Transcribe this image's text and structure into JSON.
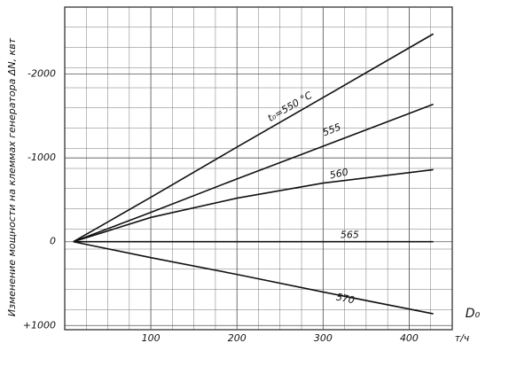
{
  "chart_data": {
    "type": "line",
    "y_label": "Изменение   мощности   на клеммах   генератора ΔN, квт",
    "x_label": "D₀",
    "x_unit": "т/ч",
    "x": [
      10,
      100,
      200,
      300,
      428
    ],
    "series": [
      {
        "name": "t₀=550 °C",
        "color": "#111",
        "values": [
          0,
          -530,
          -1130,
          -1720,
          -2480
        ]
      },
      {
        "name": "555",
        "color": "#111",
        "values": [
          0,
          -350,
          -750,
          -1140,
          -1640
        ]
      },
      {
        "name": "560",
        "color": "#111",
        "values": [
          0,
          -290,
          -520,
          -700,
          -860
        ]
      },
      {
        "name": "565",
        "color": "#111",
        "values": [
          0,
          0,
          0,
          0,
          0
        ]
      },
      {
        "name": "570",
        "color": "#111",
        "values": [
          0,
          190,
          390,
          600,
          860
        ]
      }
    ],
    "xlim": [
      0,
      450
    ],
    "xticks": [
      100,
      200,
      300,
      400
    ],
    "ylim": [
      1050,
      -2800
    ],
    "yticks": [
      -2000,
      -1000,
      0,
      {
        "value": 1000,
        "label": "+1000"
      }
    ],
    "grid": true
  }
}
